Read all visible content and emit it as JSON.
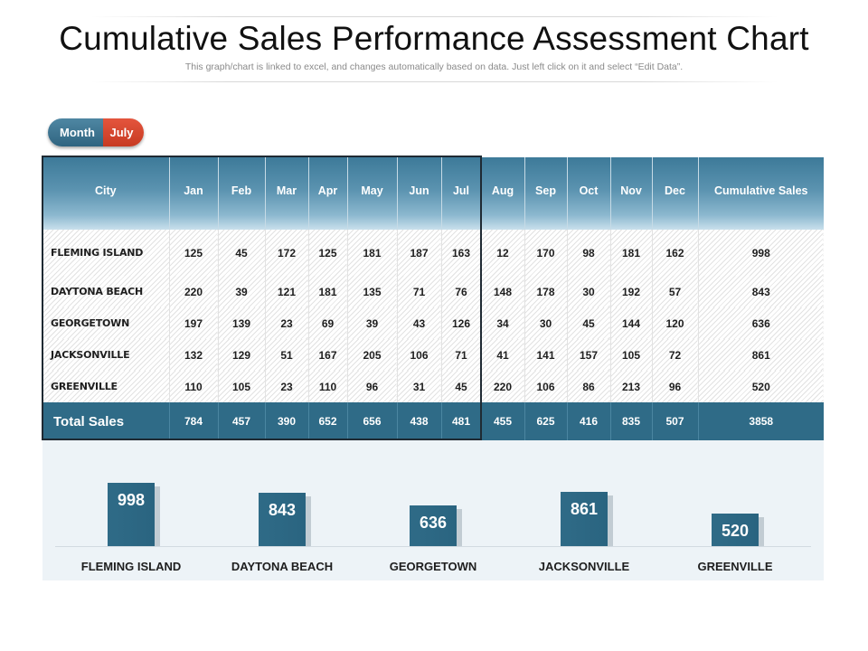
{
  "header": {
    "title": "Cumulative Sales Performance Assessment Chart",
    "subtitle": "This graph/chart is linked to excel, and changes automatically based on data. Just left click on it and select “Edit Data”."
  },
  "selector": {
    "label": "Month",
    "value": "July"
  },
  "colors": {
    "header_blue": "#3d7a99",
    "bar_blue": "#2f6b87",
    "pill_red": "#d5432b",
    "panel_bg": "#edf3f7"
  },
  "table": {
    "columns": [
      "City",
      "Jan",
      "Feb",
      "Mar",
      "Apr",
      "May",
      "Jun",
      "Jul",
      "Aug",
      "Sep",
      "Oct",
      "Nov",
      "Dec",
      "Cumulative Sales"
    ],
    "rows": [
      [
        "FLEMING ISLAND",
        "125",
        "45",
        "172",
        "125",
        "181",
        "187",
        "163",
        "12",
        "170",
        "98",
        "181",
        "162",
        "998"
      ],
      [
        "DAYTONA BEACH",
        "220",
        "39",
        "121",
        "181",
        "135",
        "71",
        "76",
        "148",
        "178",
        "30",
        "192",
        "57",
        "843"
      ],
      [
        "GEORGETOWN",
        "197",
        "139",
        "23",
        "69",
        "39",
        "43",
        "126",
        "34",
        "30",
        "45",
        "144",
        "120",
        "636"
      ],
      [
        "JACKSONVILLE",
        "132",
        "129",
        "51",
        "167",
        "205",
        "106",
        "71",
        "41",
        "141",
        "157",
        "105",
        "72",
        "861"
      ],
      [
        "GREENVILLE",
        "110",
        "105",
        "23",
        "110",
        "96",
        "31",
        "45",
        "220",
        "106",
        "86",
        "213",
        "96",
        "520"
      ]
    ],
    "totals": [
      "Total Sales",
      "784",
      "457",
      "390",
      "652",
      "656",
      "438",
      "481",
      "455",
      "625",
      "416",
      "835",
      "507",
      "3858"
    ]
  },
  "chart_data": {
    "type": "bar",
    "categories": [
      "FLEMING ISLAND",
      "DAYTONA BEACH",
      "GEORGETOWN",
      "JACKSONVILLE",
      "GREENVILLE"
    ],
    "values": [
      998,
      843,
      636,
      861,
      520
    ],
    "title": "",
    "xlabel": "",
    "ylabel": "",
    "ylim": [
      0,
      1000
    ],
    "grid": false
  }
}
